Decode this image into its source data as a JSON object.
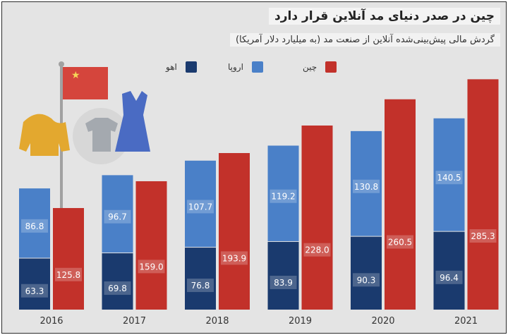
{
  "chart_data": {
    "type": "bar",
    "title": "چین در صدر دنیای مد آنلاین قرار دارد",
    "subtitle": "گردش مالی پیش‌بینی‌شده آنلاین از صنعت مد (به میلیارد دلار آمریکا)",
    "categories": [
      "2016",
      "2017",
      "2018",
      "2019",
      "2020",
      "2021"
    ],
    "series": [
      {
        "name": "اهو",
        "color": "#1a3a6e",
        "values": [
          63.3,
          69.8,
          76.8,
          83.9,
          90.3,
          96.4
        ]
      },
      {
        "name": "اروپا",
        "color": "#4a80c8",
        "values": [
          86.8,
          96.7,
          107.7,
          119.2,
          130.8,
          140.5
        ]
      },
      {
        "name": "چین",
        "color": "#c2312a",
        "values": [
          125.8,
          159.0,
          193.9,
          228.0,
          260.5,
          285.3
        ]
      }
    ],
    "value_labels": {
      "s0": [
        "63.3",
        "69.8",
        "76.8",
        "83.9",
        "90.3",
        "96.4"
      ],
      "s1": [
        "86.8",
        "96.7",
        "107.7",
        "119.2",
        "130.8",
        "140.5"
      ],
      "s2": [
        "125.8",
        "159.0",
        "193.9",
        "228.0",
        "260.5",
        "285.3"
      ]
    },
    "stacked_series": [
      "اهو",
      "اروپا"
    ],
    "ylim": [
      0,
      290
    ],
    "grid": false,
    "legend_position": "top"
  }
}
